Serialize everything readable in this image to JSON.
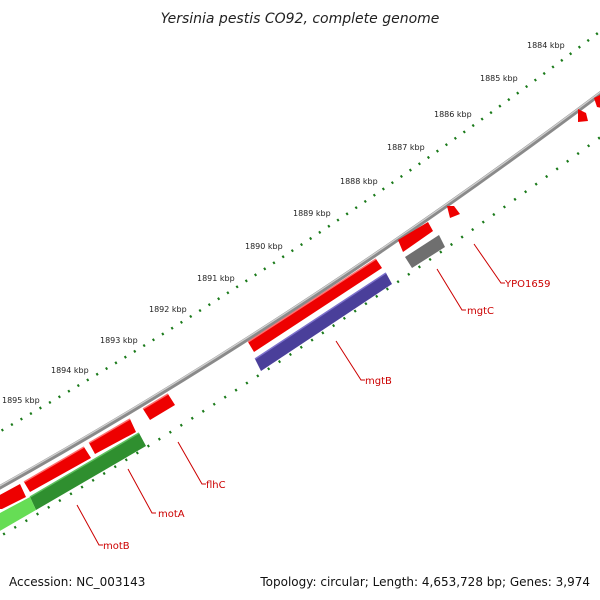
{
  "title": "Yersinia pestis CO92, complete genome",
  "footer": {
    "accession": "Accession: NC_003143",
    "summary": "Topology: circular; Length: 4,653,728 bp; Genes: 3,974"
  },
  "kbp_labels": [
    "1884 kbp",
    "1885 kbp",
    "1886 kbp",
    "1887 kbp",
    "1888 kbp",
    "1889 kbp",
    "1890 kbp",
    "1891 kbp",
    "1892 kbp",
    "1893 kbp",
    "1894 kbp",
    "1895 kbp"
  ],
  "gene_labels": [
    "YPO1659",
    "mgtC",
    "mgtB",
    "flhC",
    "motA",
    "motB"
  ],
  "colors": {
    "backbone": "#8a8a8a",
    "forward_gene": "#ee0000",
    "reverse_gene_red": "#ee0000",
    "gray_gene": "#6f6f6f",
    "purple_gene": "#4a3f9a",
    "green_gene": "#2f8f2f",
    "light_green_gene": "#66dd55",
    "tick": "#1a7a1a",
    "label": "#cc0000"
  }
}
